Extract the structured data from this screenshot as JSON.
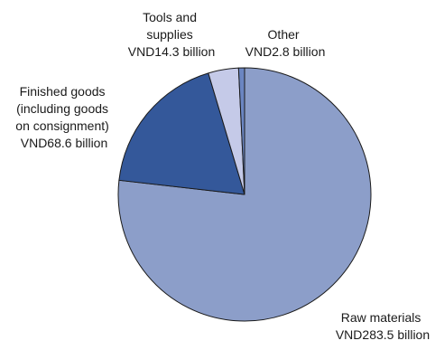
{
  "chart_data": {
    "type": "pie",
    "title": "",
    "unit": "VND billion",
    "slices": [
      {
        "label_lines": [
          "Raw materials",
          "VND283.5 billion"
        ],
        "name": "Raw materials",
        "value": 283.5,
        "color": "#8c9ec9"
      },
      {
        "label_lines": [
          "Finished goods",
          "(including goods",
          "on consignment)",
          "VND68.6 billion"
        ],
        "name": "Finished goods (including goods on consignment)",
        "value": 68.6,
        "color": "#34589a"
      },
      {
        "label_lines": [
          "Tools and",
          "supplies",
          "VND14.3 billion"
        ],
        "name": "Tools and supplies",
        "value": 14.3,
        "color": "#c5cae8"
      },
      {
        "label_lines": [
          "Other",
          "VND2.8 billion"
        ],
        "name": "Other",
        "value": 2.8,
        "color": "#6b86c2"
      }
    ]
  }
}
